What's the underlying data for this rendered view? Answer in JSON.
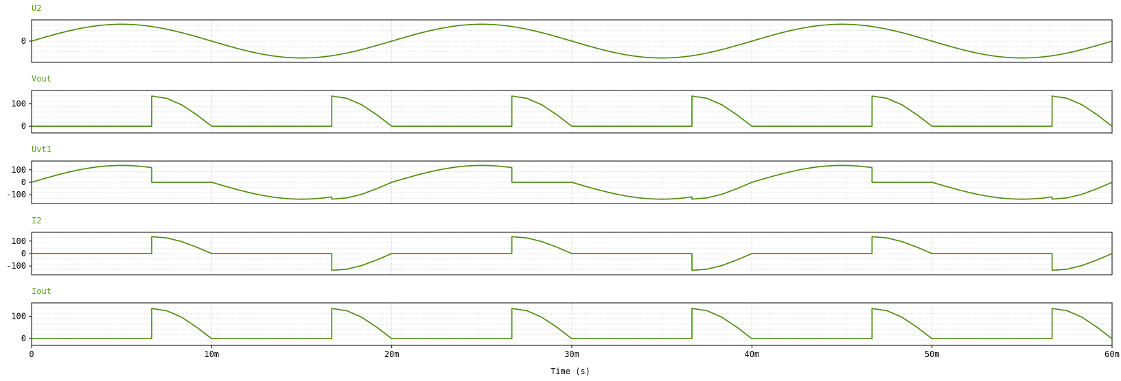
{
  "chart_data": {
    "type": "line",
    "x_unit_label": "Time (s)",
    "x_range": [
      0,
      0.06
    ],
    "x_ticks": [
      {
        "value": 0,
        "label": "0"
      },
      {
        "value": 0.01,
        "label": "10m"
      },
      {
        "value": 0.02,
        "label": "20m"
      },
      {
        "value": 0.03,
        "label": "30m"
      },
      {
        "value": 0.04,
        "label": "40m"
      },
      {
        "value": 0.05,
        "label": "50m"
      },
      {
        "value": 0.06,
        "label": "60m"
      }
    ],
    "grid": true,
    "line_color": "#4f8d10",
    "panels": [
      {
        "title": "U2",
        "ylim": [
          -170,
          170
        ],
        "y_ticks": [
          {
            "value": 0,
            "label": "0"
          }
        ],
        "x": [
          0,
          0.0025,
          0.005,
          0.0075,
          0.01,
          0.0125,
          0.015,
          0.0175,
          0.02,
          0.0225,
          0.025,
          0.0275,
          0.03,
          0.0325,
          0.035,
          0.0375,
          0.04,
          0.0425,
          0.045,
          0.0475,
          0.05,
          0.0525,
          0.055,
          0.0575,
          0.06
        ],
        "values": [
          0,
          96,
          135,
          96,
          0,
          -96,
          -135,
          -96,
          0,
          96,
          135,
          96,
          0,
          -96,
          -135,
          -96,
          0,
          96,
          135,
          96,
          0,
          -96,
          -135,
          -96,
          0
        ]
      },
      {
        "title": "Vout",
        "ylim": [
          -30,
          160
        ],
        "y_ticks": [
          {
            "value": 100,
            "label": "100"
          },
          {
            "value": 0,
            "label": "0"
          }
        ],
        "x": [
          0,
          0.00667,
          0.00667,
          0.0075,
          0.00833,
          0.00917,
          0.01,
          0.01667,
          0.01667,
          0.0175,
          0.01833,
          0.01917,
          0.02,
          0.02667,
          0.02667,
          0.0275,
          0.02833,
          0.02917,
          0.03,
          0.03667,
          0.03667,
          0.0375,
          0.03833,
          0.03917,
          0.04,
          0.04667,
          0.04667,
          0.0475,
          0.04833,
          0.04917,
          0.05,
          0.05667,
          0.05667,
          0.0575,
          0.05833,
          0.05917,
          0.06
        ],
        "values": [
          0,
          0,
          135,
          125,
          96,
          51,
          0,
          0,
          135,
          125,
          96,
          51,
          0,
          0,
          135,
          125,
          96,
          51,
          0,
          0,
          135,
          125,
          96,
          51,
          0,
          0,
          135,
          125,
          96,
          51,
          0,
          0,
          135,
          125,
          96,
          51,
          0
        ]
      },
      {
        "title": "Uvt1",
        "ylim": [
          -170,
          170
        ],
        "y_ticks": [
          {
            "value": 100,
            "label": "100"
          },
          {
            "value": 0,
            "label": "0"
          },
          {
            "value": -100,
            "label": "-100"
          }
        ],
        "x": [
          0,
          0.0025,
          0.005,
          0.00667,
          0.00667,
          0.01,
          0.0125,
          0.015,
          0.01667,
          0.01667,
          0.0175,
          0.01833,
          0.01917,
          0.02,
          0.0225,
          0.025,
          0.02667,
          0.02667,
          0.03,
          0.0325,
          0.035,
          0.03667,
          0.03667,
          0.0375,
          0.03833,
          0.03917,
          0.04,
          0.0425,
          0.045,
          0.04667,
          0.04667,
          0.05,
          0.0525,
          0.055,
          0.05667,
          0.05667,
          0.0575,
          0.05833,
          0.05917,
          0.06
        ],
        "values": [
          0,
          96,
          135,
          117,
          0,
          0,
          -96,
          -135,
          -117,
          -135,
          -125,
          -96,
          -51,
          0,
          96,
          135,
          117,
          0,
          0,
          -96,
          -135,
          -117,
          -135,
          -125,
          -96,
          -51,
          0,
          96,
          135,
          117,
          0,
          0,
          -96,
          -135,
          -117,
          -135,
          -125,
          -96,
          -51,
          0
        ]
      },
      {
        "title": "I2",
        "ylim": [
          -170,
          170
        ],
        "y_ticks": [
          {
            "value": 100,
            "label": "100"
          },
          {
            "value": 0,
            "label": "0"
          },
          {
            "value": -100,
            "label": "-100"
          }
        ],
        "x": [
          0,
          0.00667,
          0.00667,
          0.0075,
          0.00833,
          0.00917,
          0.01,
          0.01667,
          0.01667,
          0.0175,
          0.01833,
          0.01917,
          0.02,
          0.02667,
          0.02667,
          0.0275,
          0.02833,
          0.02917,
          0.03,
          0.03667,
          0.03667,
          0.0375,
          0.03833,
          0.03917,
          0.04,
          0.04667,
          0.04667,
          0.0475,
          0.04833,
          0.04917,
          0.05,
          0.05667,
          0.05667,
          0.0575,
          0.05833,
          0.05917,
          0.06
        ],
        "values": [
          0,
          0,
          135,
          125,
          96,
          51,
          0,
          0,
          -135,
          -125,
          -96,
          -51,
          0,
          0,
          135,
          125,
          96,
          51,
          0,
          0,
          -135,
          -125,
          -96,
          -51,
          0,
          0,
          135,
          125,
          96,
          51,
          0,
          0,
          -135,
          -125,
          -96,
          -51,
          0
        ]
      },
      {
        "title": "Iout",
        "ylim": [
          -30,
          160
        ],
        "y_ticks": [
          {
            "value": 100,
            "label": "100"
          },
          {
            "value": 0,
            "label": "0"
          }
        ],
        "x": [
          0,
          0.00667,
          0.00667,
          0.0075,
          0.00833,
          0.00917,
          0.01,
          0.01667,
          0.01667,
          0.0175,
          0.01833,
          0.01917,
          0.02,
          0.02667,
          0.02667,
          0.0275,
          0.02833,
          0.02917,
          0.03,
          0.03667,
          0.03667,
          0.0375,
          0.03833,
          0.03917,
          0.04,
          0.04667,
          0.04667,
          0.0475,
          0.04833,
          0.04917,
          0.05,
          0.05667,
          0.05667,
          0.0575,
          0.05833,
          0.05917,
          0.06
        ],
        "values": [
          0,
          0,
          135,
          125,
          96,
          51,
          0,
          0,
          135,
          125,
          96,
          51,
          0,
          0,
          135,
          125,
          96,
          51,
          0,
          0,
          135,
          125,
          96,
          51,
          0,
          0,
          135,
          125,
          96,
          51,
          0,
          0,
          135,
          125,
          96,
          51,
          0
        ]
      }
    ]
  }
}
